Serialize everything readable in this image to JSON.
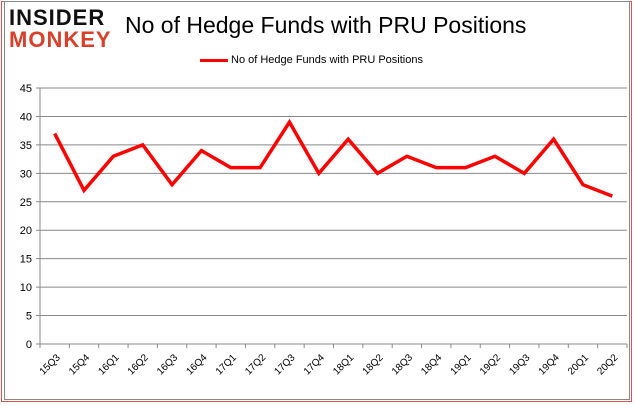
{
  "logo": {
    "line1": "INSIDER",
    "line2": "MONKEY"
  },
  "chart_data": {
    "type": "line",
    "title": "No of Hedge Funds with PRU Positions",
    "categories": [
      "15Q3",
      "15Q4",
      "16Q1",
      "16Q2",
      "16Q3",
      "16Q4",
      "17Q1",
      "17Q2",
      "17Q3",
      "17Q4",
      "18Q1",
      "18Q2",
      "18Q3",
      "18Q4",
      "19Q1",
      "19Q2",
      "19Q3",
      "19Q4",
      "20Q1",
      "20Q2"
    ],
    "series": [
      {
        "name": "No of Hedge Funds with PRU Positions",
        "color": "#ff0000",
        "values": [
          37,
          27,
          33,
          35,
          28,
          34,
          31,
          31,
          39,
          30,
          36,
          30,
          33,
          31,
          31,
          33,
          30,
          36,
          28,
          26
        ]
      }
    ],
    "ylim": [
      0,
      45
    ],
    "yticks": [
      0,
      5,
      10,
      15,
      20,
      25,
      30,
      35,
      40,
      45
    ],
    "grid": true,
    "legend": "top"
  }
}
